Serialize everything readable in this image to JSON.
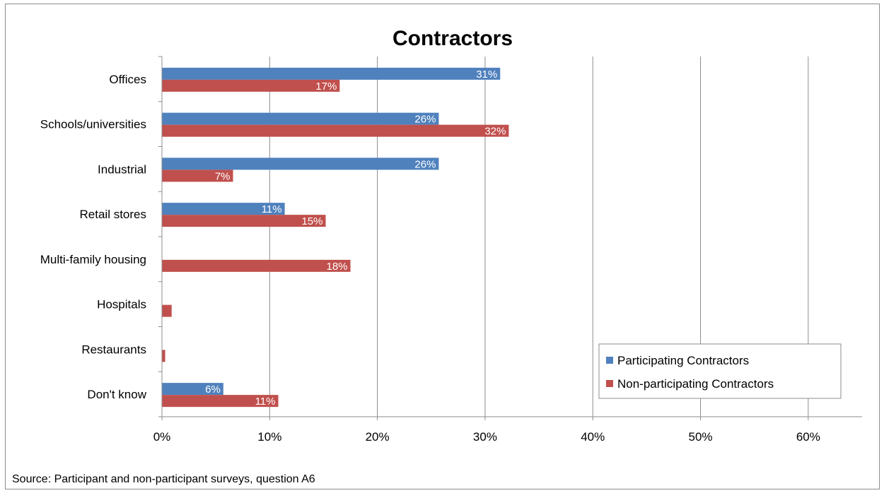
{
  "chart_data": {
    "type": "bar",
    "orientation": "horizontal",
    "title": "Contractors",
    "categories": [
      "Offices",
      "Schools/universities",
      "Industrial",
      "Retail stores",
      "Multi-family housing",
      "Hospitals",
      "Restaurants",
      "Don't know"
    ],
    "series": [
      {
        "name": "Participating Contractors",
        "color": "#4f81bd",
        "values": [
          31.4,
          25.7,
          25.7,
          11.4,
          0,
          0,
          0,
          5.7
        ],
        "labels": [
          "31%",
          "26%",
          "26%",
          "11%",
          "",
          "",
          "",
          "6%"
        ]
      },
      {
        "name": "Non-participating Contractors",
        "color": "#c0504d",
        "values": [
          16.5,
          32.2,
          6.6,
          15.2,
          17.5,
          0.9,
          0.3,
          10.8
        ],
        "labels": [
          "17%",
          "32%",
          "7%",
          "15%",
          "18%",
          "",
          "",
          "11%"
        ]
      }
    ],
    "xlim": [
      0,
      65
    ],
    "xticks": [
      0,
      10,
      20,
      30,
      40,
      50,
      60
    ],
    "xtick_labels": [
      "0%",
      "10%",
      "20%",
      "30%",
      "40%",
      "50%",
      "60%"
    ],
    "xlabel": "",
    "ylabel": "",
    "grid": "vertical major gridlines",
    "legend_position": "bottom-right"
  },
  "source_note": "Source: Participant and non-participant surveys, question A6"
}
